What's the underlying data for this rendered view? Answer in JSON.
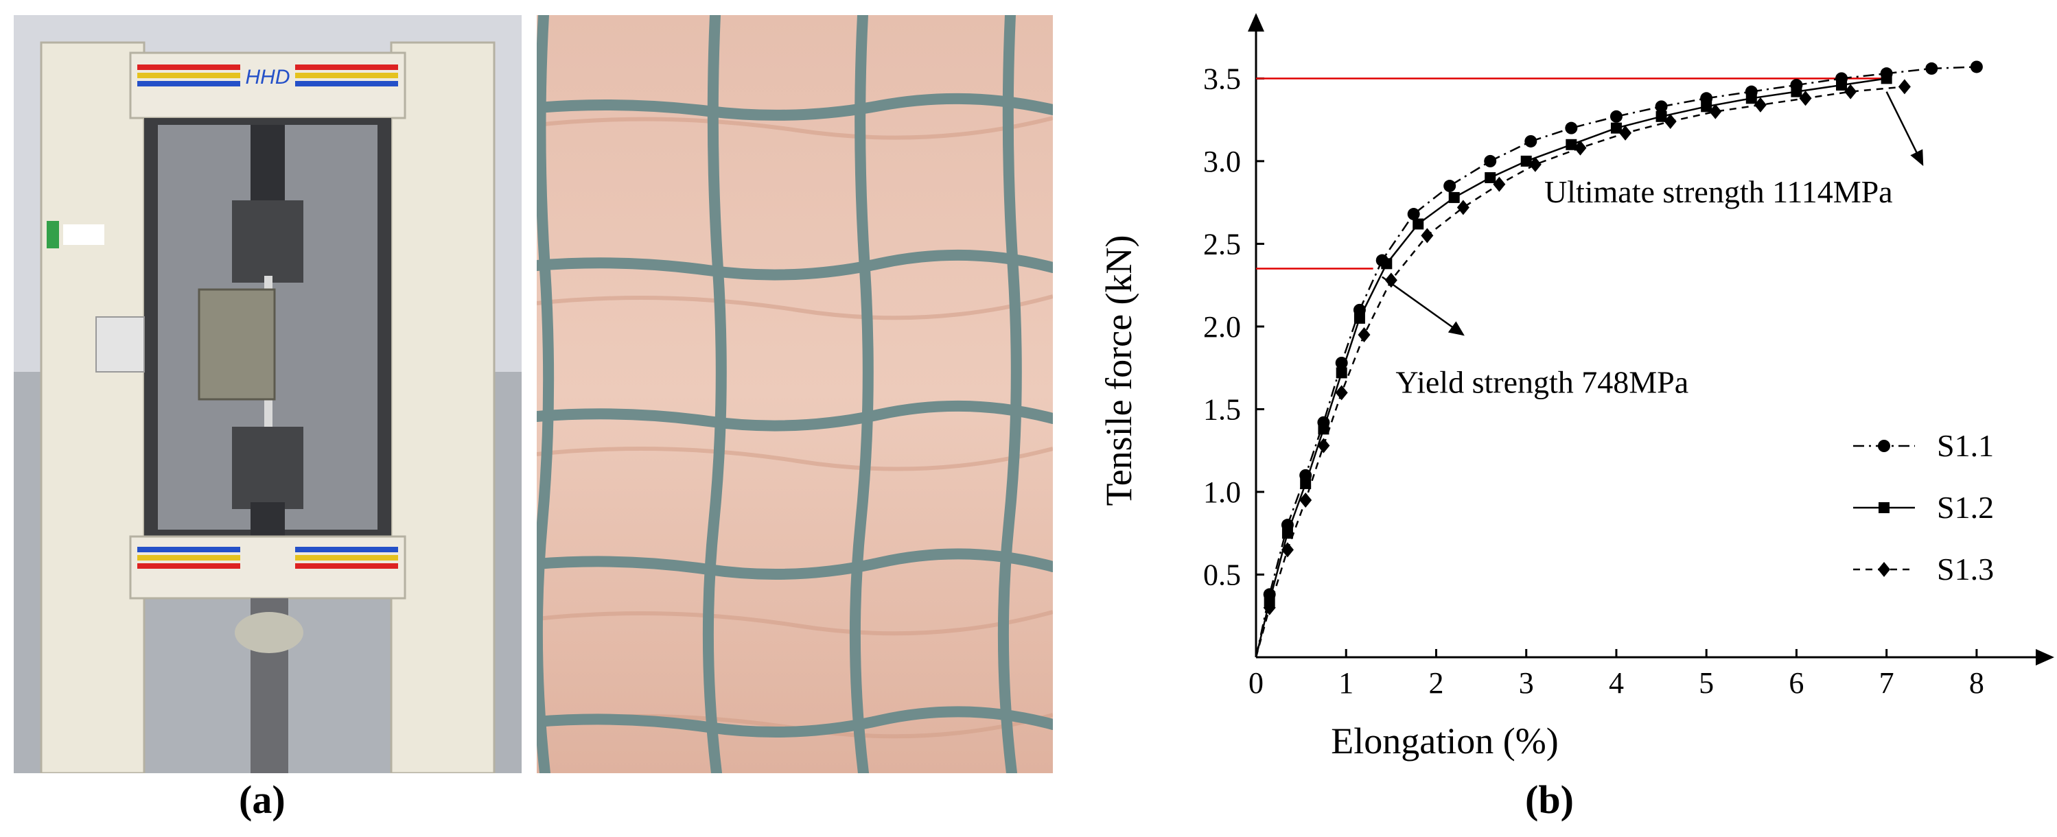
{
  "panels": {
    "a_label": "(a)",
    "b_label": "(b)"
  },
  "photos": {
    "machine_logo": "HHD"
  },
  "colors": {
    "reference_line": "#e00000",
    "series": "#000000",
    "wood_light": "#e9c5b3",
    "wood_dark": "#d29c86",
    "mesh_wire": "#6f8c8c"
  },
  "chart_data": {
    "type": "line",
    "xlabel": "Elongation (%)",
    "ylabel": "Tensile force (kN)",
    "xlim": [
      0,
      8.9
    ],
    "ylim": [
      0,
      3.85
    ],
    "xticks": [
      0,
      1,
      2,
      3,
      4,
      5,
      6,
      7,
      8
    ],
    "yticks": [
      0.5,
      1.0,
      1.5,
      2.0,
      2.5,
      3.0,
      3.5
    ],
    "ytick_labels": [
      "0.5",
      "1.0",
      "1.5",
      "2.0",
      "2.5",
      "3.0",
      "3.5"
    ],
    "grid": false,
    "legend": {
      "position": "bottom-right"
    },
    "series": [
      {
        "name": "S1.1",
        "marker": "circle",
        "dash": "dashdot",
        "x": [
          0.15,
          0.35,
          0.55,
          0.75,
          0.95,
          1.15,
          1.4,
          1.75,
          2.15,
          2.6,
          3.05,
          3.5,
          4.0,
          4.5,
          5.0,
          5.5,
          6.0,
          6.5,
          7.0,
          7.5,
          8.0
        ],
        "y": [
          0.38,
          0.8,
          1.1,
          1.42,
          1.78,
          2.1,
          2.4,
          2.68,
          2.85,
          3.0,
          3.12,
          3.2,
          3.27,
          3.33,
          3.38,
          3.42,
          3.46,
          3.5,
          3.53,
          3.56,
          3.57
        ]
      },
      {
        "name": "S1.2",
        "marker": "square",
        "dash": "solid",
        "x": [
          0.15,
          0.35,
          0.55,
          0.75,
          0.95,
          1.15,
          1.45,
          1.8,
          2.2,
          2.6,
          3.0,
          3.5,
          4.0,
          4.5,
          5.0,
          5.5,
          6.0,
          6.5,
          7.0
        ],
        "y": [
          0.34,
          0.75,
          1.05,
          1.38,
          1.72,
          2.05,
          2.38,
          2.62,
          2.78,
          2.9,
          3.0,
          3.1,
          3.2,
          3.27,
          3.33,
          3.38,
          3.42,
          3.46,
          3.5
        ]
      },
      {
        "name": "S1.3",
        "marker": "diamond",
        "dash": "dashed",
        "x": [
          0.15,
          0.35,
          0.55,
          0.75,
          0.95,
          1.2,
          1.5,
          1.9,
          2.3,
          2.7,
          3.1,
          3.6,
          4.1,
          4.6,
          5.1,
          5.6,
          6.1,
          6.6,
          7.2
        ],
        "y": [
          0.3,
          0.65,
          0.95,
          1.28,
          1.6,
          1.95,
          2.28,
          2.55,
          2.72,
          2.86,
          2.98,
          3.08,
          3.17,
          3.24,
          3.3,
          3.34,
          3.38,
          3.42,
          3.45
        ]
      }
    ],
    "reference_lines": [
      {
        "axis": "y",
        "value": 3.5,
        "x_end": 7.0
      },
      {
        "axis": "y",
        "value": 2.35,
        "x_end": 1.3
      }
    ],
    "annotations": [
      {
        "text": "Ultimate strength 1114MPa",
        "x": 3.2,
        "y": 2.75,
        "arrow_from": [
          7.0,
          3.42
        ],
        "arrow_to": [
          7.4,
          2.98
        ]
      },
      {
        "text": "Yield strength 748MPa",
        "x": 1.55,
        "y": 1.6,
        "arrow_from": [
          1.4,
          2.3
        ],
        "arrow_to": [
          2.3,
          1.95
        ]
      }
    ]
  }
}
